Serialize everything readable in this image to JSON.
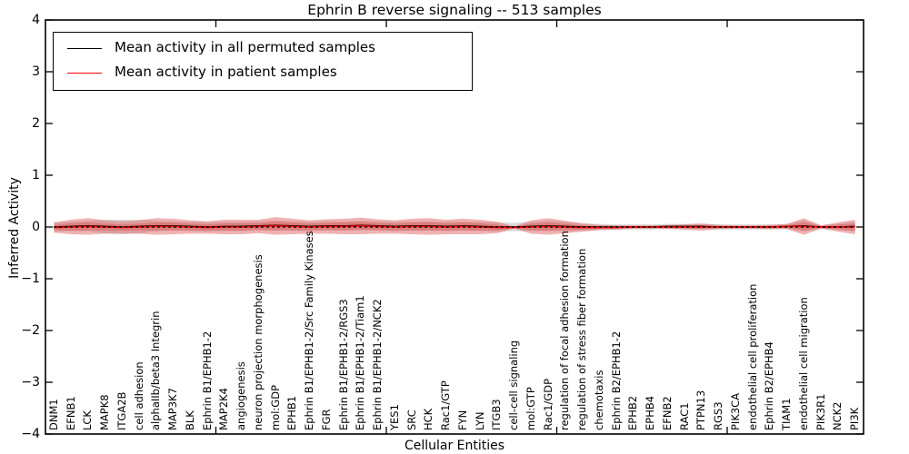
{
  "figure": {
    "title": "Ephrin B reverse signaling -- 513 samples",
    "xlabel": "Cellular Entities",
    "ylabel": "Inferred Activity"
  },
  "legend": {
    "entries": [
      {
        "label": "Mean activity in all permuted samples",
        "color": "#000000"
      },
      {
        "label": "Mean activity in patient samples",
        "color": "#ff0000"
      }
    ]
  },
  "chart_data": {
    "type": "line",
    "title": "Ephrin B reverse signaling -- 513 samples",
    "xlabel": "Cellular Entities",
    "ylabel": "Inferred Activity",
    "ylim": [
      -4,
      4
    ],
    "xlim": [
      0,
      48
    ],
    "yticks": [
      4,
      3,
      2,
      1,
      0,
      -1,
      -2,
      -3,
      -4
    ],
    "ytick_labels": [
      "4",
      "3",
      "2",
      "1",
      "0",
      "−1",
      "−2",
      "−3",
      "−4"
    ],
    "xticks": [
      10,
      20,
      30,
      40
    ],
    "grid": false,
    "legend_position": "upper left",
    "zero_line": {
      "y": 0,
      "style": "dotted",
      "color": "#000000"
    },
    "categories": [
      "DNM1",
      "EFNB1",
      "LCK",
      "MAPK8",
      "ITGA2B",
      "cell adhesion",
      "alphaIIb/beta3 Integrin",
      "MAP3K7",
      "BLK",
      "Ephrin B1/EPHB1-2",
      "MAP2K4",
      "angiogenesis",
      "neuron projection morphogenesis",
      "mol:GDP",
      "EPHB1",
      "Ephrin B1/EPHB1-2/Src Family Kinases",
      "FGR",
      "Ephrin B1/EPHB1-2/RGS3",
      "Ephrin B1/EPHB1-2/Tiam1",
      "Ephrin B1/EPHB1-2/NCK2",
      "YES1",
      "SRC",
      "HCK",
      "Rac1/GTP",
      "FYN",
      "LYN",
      "ITGB3",
      "cell-cell signaling",
      "mol:GTP",
      "Rac1/GDP",
      "regulation of focal adhesion formation",
      "regulation of stress fiber formation",
      "chemotaxis",
      "Ephrin B2/EPHB1-2",
      "EPHB2",
      "EPHB4",
      "EFNB2",
      "RAC1",
      "PTPN13",
      "RGS3",
      "PIK3CA",
      "endothelial cell proliferation",
      "Ephrin B2/EPHB4",
      "TIAM1",
      "endothelial cell migration",
      "PIK3R1",
      "NCK2",
      "PI3K"
    ],
    "series": [
      {
        "name": "Mean activity in all permuted samples",
        "color": "#000000",
        "values": [
          0.0,
          0.01,
          0.02,
          0.01,
          0.0,
          0.01,
          0.02,
          0.02,
          0.01,
          0.0,
          0.01,
          0.01,
          0.02,
          0.03,
          0.02,
          0.01,
          0.02,
          0.02,
          0.03,
          0.02,
          0.01,
          0.02,
          0.02,
          0.01,
          0.02,
          0.01,
          0.0,
          0.0,
          0.01,
          0.02,
          0.01,
          0.0,
          0.0,
          0.0,
          0.0,
          0.0,
          0.01,
          0.01,
          0.01,
          0.0,
          0.0,
          0.0,
          0.0,
          0.01,
          0.02,
          0.0,
          0.0,
          0.01
        ]
      },
      {
        "name": "Mean activity in patient samples",
        "color": "#ff0000",
        "values": [
          -0.01,
          0.0,
          0.01,
          0.0,
          -0.01,
          0.0,
          0.01,
          0.01,
          0.0,
          -0.01,
          0.0,
          0.0,
          0.01,
          0.02,
          0.01,
          0.0,
          0.01,
          0.01,
          0.02,
          0.01,
          0.0,
          0.01,
          0.01,
          0.0,
          0.01,
          0.0,
          -0.01,
          -0.01,
          0.0,
          0.01,
          0.0,
          -0.01,
          -0.01,
          -0.01,
          0.0,
          0.0,
          0.0,
          0.0,
          0.0,
          0.0,
          0.0,
          0.0,
          0.0,
          0.01,
          0.01,
          0.0,
          0.0,
          0.0
        ]
      }
    ],
    "bands": [
      {
        "name": "permuted-samples-spread",
        "series": 0,
        "color": "#bbbbbb",
        "opacity": 0.55,
        "half_width": [
          0.09,
          0.09,
          0.1,
          0.13,
          0.14,
          0.13,
          0.1,
          0.09,
          0.09,
          0.09,
          0.09,
          0.09,
          0.09,
          0.1,
          0.09,
          0.09,
          0.09,
          0.09,
          0.09,
          0.09,
          0.09,
          0.09,
          0.09,
          0.09,
          0.09,
          0.09,
          0.09,
          0.08,
          0.09,
          0.1,
          0.09,
          0.07,
          0.06,
          0.05,
          0.05,
          0.05,
          0.05,
          0.05,
          0.05,
          0.05,
          0.05,
          0.05,
          0.05,
          0.05,
          0.11,
          0.04,
          0.06,
          0.1
        ]
      },
      {
        "name": "patient-samples-spread-outer",
        "series": 1,
        "color": "#e05555",
        "opacity": 0.45,
        "half_width": [
          0.1,
          0.14,
          0.16,
          0.13,
          0.12,
          0.13,
          0.16,
          0.15,
          0.13,
          0.12,
          0.14,
          0.14,
          0.13,
          0.17,
          0.15,
          0.13,
          0.14,
          0.15,
          0.16,
          0.14,
          0.13,
          0.15,
          0.16,
          0.14,
          0.15,
          0.14,
          0.11,
          0.02,
          0.13,
          0.16,
          0.12,
          0.08,
          0.05,
          0.04,
          0.03,
          0.03,
          0.04,
          0.05,
          0.07,
          0.04,
          0.03,
          0.03,
          0.04,
          0.05,
          0.16,
          0.03,
          0.09,
          0.14
        ]
      },
      {
        "name": "patient-samples-spread-inner",
        "series": 1,
        "color": "#d94040",
        "opacity": 0.35,
        "half_width": [
          0.05,
          0.07,
          0.08,
          0.065,
          0.06,
          0.065,
          0.08,
          0.075,
          0.065,
          0.06,
          0.07,
          0.07,
          0.065,
          0.085,
          0.075,
          0.065,
          0.07,
          0.075,
          0.08,
          0.07,
          0.065,
          0.075,
          0.08,
          0.07,
          0.075,
          0.07,
          0.055,
          0.01,
          0.065,
          0.08,
          0.06,
          0.04,
          0.025,
          0.02,
          0.015,
          0.015,
          0.02,
          0.025,
          0.035,
          0.02,
          0.015,
          0.015,
          0.02,
          0.025,
          0.08,
          0.015,
          0.045,
          0.07
        ]
      }
    ]
  }
}
